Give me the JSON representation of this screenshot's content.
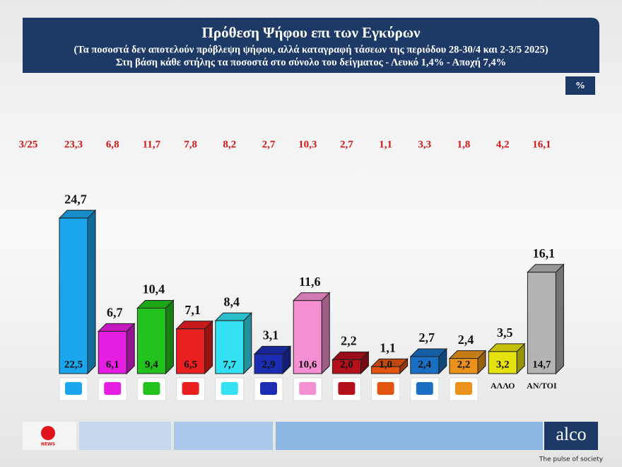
{
  "chart_data": {
    "type": "bar3d",
    "title": "Πρόθεση Ψήφου επι των Εγκύρων",
    "subtitle": "(Τα ποσοστά δεν αποτελούν πρόβλεψη ψήφου, αλλά καταγραφή τάσεων της περιόδου  28-30/4 και 2-3/5 2025)",
    "subtitle2": "Στη βάση κάθε στήλης τα ποσοστά στο σύνολο του δείγματος - Λευκό 1,4% - Αποχή 7,4%",
    "unit_label": "%",
    "categories": [
      null,
      null,
      null,
      null,
      null,
      null,
      null,
      null,
      null,
      null,
      null,
      "ΑΛΛΟ",
      "ΑΝ/ΤΟΙ"
    ],
    "colors": [
      "#1aa6ec",
      "#e61ee2",
      "#22c31c",
      "#ea1f1f",
      "#33e1f2",
      "#1b2eb2",
      "#f68fd2",
      "#b3101c",
      "#e25410",
      "#1a6fc2",
      "#ea921a",
      "#e6e20e",
      "#b3b3b3"
    ],
    "series": [
      {
        "values": [
          24.7,
          6.7,
          10.4,
          7.1,
          8.4,
          3.1,
          11.6,
          2.2,
          1.1,
          2.7,
          2.4,
          3.5,
          16.1
        ],
        "value_labels": [
          "24,7",
          "6,7",
          "10,4",
          "7,1",
          "8,4",
          "3,1",
          "11,6",
          "2,2",
          "1,1",
          "2,7",
          "2,4",
          "3,5",
          "16,1"
        ]
      },
      {
        "values": [
          22.5,
          6.1,
          9.4,
          6.5,
          7.7,
          2.9,
          10.6,
          2.0,
          1.0,
          2.4,
          2.2,
          3.2,
          14.7
        ],
        "value_labels": [
          "22,5",
          "6,1",
          "9,4",
          "6,5",
          "7,7",
          "2,9",
          "10,6",
          "2,0",
          "1,0",
          "2,4",
          "2,2",
          "3,2",
          "14,7"
        ]
      },
      {
        "name": "3/25",
        "values": [
          23.3,
          6.8,
          11.7,
          7.8,
          8.2,
          2.7,
          10.3,
          2.7,
          1.1,
          3.3,
          1.8,
          4.2,
          16.1
        ],
        "value_labels": [
          "23,3",
          "6,8",
          "11,7",
          "7,8",
          "8,2",
          "2,7",
          "10,3",
          "2,7",
          "1,1",
          "3,3",
          "1,8",
          "4,2",
          "16,1"
        ]
      }
    ]
  },
  "footer": {
    "news": "NEWS",
    "brand": "alco",
    "tagline": "The pulse of society"
  }
}
